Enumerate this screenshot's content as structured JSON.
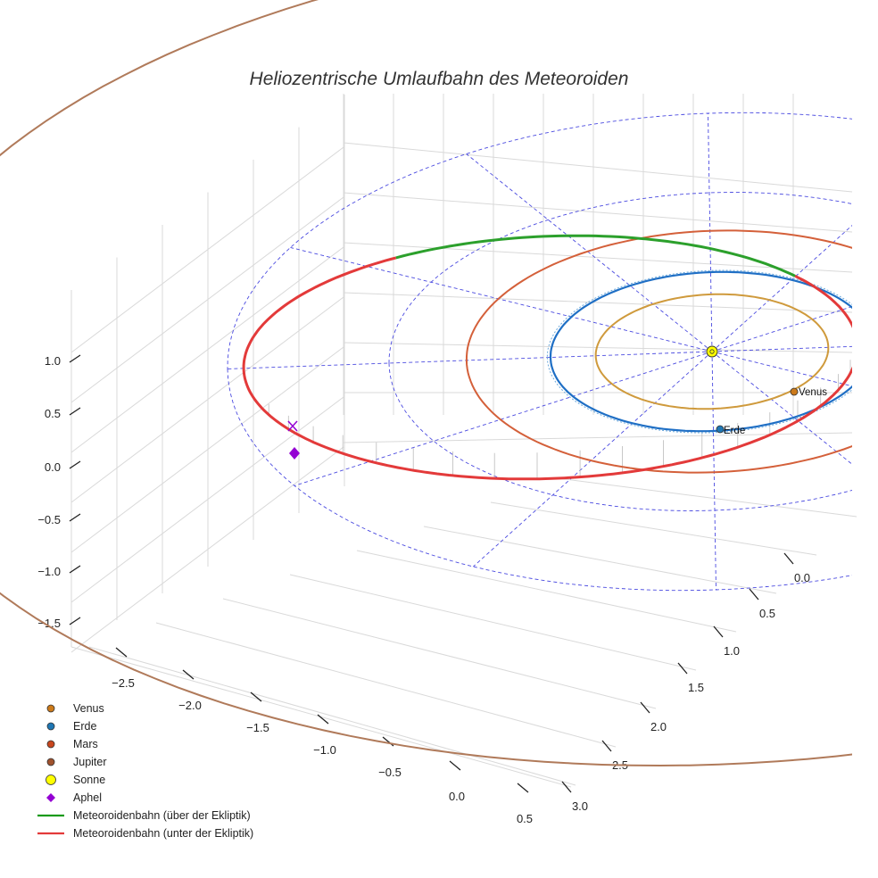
{
  "chart_data": {
    "type": "line",
    "projection": "3d",
    "title": "Heliozentrische Umlaufbahn des Meteoroiden",
    "axes": {
      "x_ticks": [
        "−2.5",
        "−2.0",
        "−1.5",
        "−1.0",
        "−0.5",
        "0.0",
        "0.5"
      ],
      "y_ticks": [
        "0.0",
        "0.5",
        "1.0",
        "1.5",
        "2.0",
        "2.5",
        "3.0"
      ],
      "z_ticks": [
        "1.0",
        "0.5",
        "0.0",
        "−0.5",
        "−1.0",
        "−1.5"
      ],
      "xlim": [
        -2.8,
        0.6
      ],
      "ylim": [
        -0.2,
        3.1
      ],
      "zlim": [
        -1.7,
        1.3
      ],
      "grid": true
    },
    "orbits": [
      {
        "name": "Venus",
        "semi_major_axis_au": 0.72,
        "color": "#cf9a3c"
      },
      {
        "name": "Erde",
        "semi_major_axis_au": 1.0,
        "color": "#1f6fc5"
      },
      {
        "name": "Mars",
        "semi_major_axis_au": 1.52,
        "color": "#d4603a"
      },
      {
        "name": "Jupiter",
        "semi_major_axis_au": 5.2,
        "color": "#b07a5a"
      }
    ],
    "ecliptic_grid_radii_au": [
      1.0,
      2.0,
      3.0
    ],
    "meteoroid_orbit": {
      "perihelion_au": 0.9,
      "aphelion_au": 2.9,
      "above_color": "#2ca02c",
      "below_color": "#e33a3a"
    },
    "labels": {
      "venus": "Venus",
      "earth": "Erde"
    },
    "legend": {
      "position": "lower-left",
      "entries": [
        {
          "label": "Venus",
          "marker": "circle",
          "color": "#cc7a1a"
        },
        {
          "label": "Erde",
          "marker": "circle",
          "color": "#1f77b4"
        },
        {
          "label": "Mars",
          "marker": "circle",
          "color": "#c8461e"
        },
        {
          "label": "Jupiter",
          "marker": "circle",
          "color": "#a0522d"
        },
        {
          "label": "Sonne",
          "marker": "circle",
          "color": "#ffff00"
        },
        {
          "label": "Aphel",
          "marker": "diamond",
          "color": "#9400d3"
        },
        {
          "label": "Meteoroidenbahn (über der Ekliptik)",
          "marker": "line",
          "color": "#1a9a1a"
        },
        {
          "label": "Meteoroidenbahn (unter der Ekliptik)",
          "marker": "line",
          "color": "#e33a3a"
        }
      ]
    }
  }
}
